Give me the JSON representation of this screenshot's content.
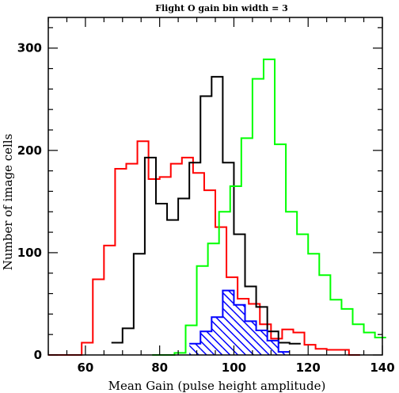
{
  "chart_data": {
    "type": "histogram",
    "title": "Flight O gain    bin width = 3",
    "xlabel": "Mean Gain (pulse height amplitude)",
    "ylabel": "Number of image cells",
    "xlim": [
      50,
      140
    ],
    "ylim": [
      0,
      330
    ],
    "x_ticks": [
      60,
      80,
      100,
      120,
      140
    ],
    "y_ticks": [
      0,
      100,
      200,
      300
    ],
    "x_minor_step": 5,
    "y_minor_step": 20,
    "bin_width": 3,
    "grid": false,
    "legend": "none",
    "series": [
      {
        "color": "#ff0000",
        "edges": [
          50,
          53,
          56,
          59,
          62,
          65,
          68,
          71,
          74,
          77,
          80,
          83,
          86,
          89,
          92,
          95,
          98,
          101,
          104,
          107,
          110,
          113,
          116,
          119,
          122,
          125,
          128,
          131,
          134
        ],
        "counts": [
          0,
          0,
          0,
          12,
          74,
          107,
          182,
          187,
          209,
          172,
          174,
          187,
          193,
          178,
          161,
          125,
          76,
          55,
          50,
          30,
          16,
          25,
          22,
          10,
          6,
          5,
          5,
          0
        ]
      },
      {
        "color": "#000000",
        "edges": [
          67,
          70,
          73,
          76,
          79,
          82,
          85,
          88,
          91,
          94,
          97,
          100,
          103,
          106,
          109,
          112,
          115,
          118
        ],
        "counts": [
          12,
          26,
          99,
          193,
          148,
          132,
          153,
          188,
          253,
          272,
          188,
          118,
          67,
          47,
          23,
          12,
          11
        ]
      },
      {
        "color": "#00ff00",
        "edges": [
          78,
          81,
          84,
          87,
          90,
          93,
          96,
          99,
          102,
          105,
          108,
          111,
          114,
          117,
          120,
          123,
          126,
          129,
          132,
          135,
          138,
          141
        ],
        "counts": [
          0,
          0,
          2,
          29,
          87,
          109,
          140,
          165,
          212,
          270,
          289,
          206,
          140,
          118,
          99,
          78,
          54,
          45,
          30,
          22,
          17
        ]
      },
      {
        "color": "#0000ff",
        "hatched": true,
        "edges": [
          88,
          91,
          94,
          97,
          100,
          103,
          106,
          109,
          112,
          115
        ],
        "counts": [
          11,
          23,
          37,
          63,
          49,
          33,
          24,
          14,
          3
        ]
      }
    ]
  }
}
